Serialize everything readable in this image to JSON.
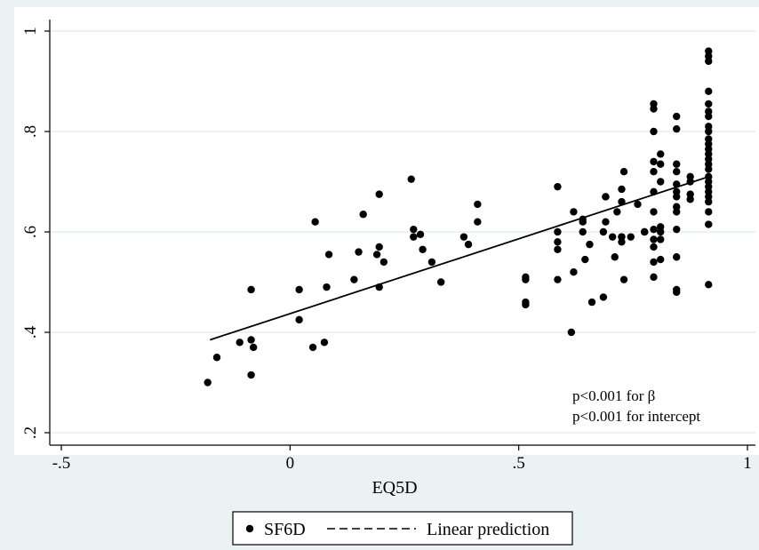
{
  "chart_data": {
    "type": "scatter",
    "xlabel": "EQ5D",
    "ylabel": "",
    "xlim": [
      -0.5,
      1.0
    ],
    "ylim": [
      0.2,
      1.0
    ],
    "x_ticks": [
      -0.5,
      0,
      0.5,
      1
    ],
    "x_tick_labels": [
      "-.5",
      "0",
      ".5",
      "1"
    ],
    "y_ticks": [
      0.2,
      0.4,
      0.6,
      0.8,
      1.0
    ],
    "y_tick_labels": [
      ".2",
      ".4",
      ".6",
      ".8",
      "1"
    ],
    "grid": "horizontal",
    "annotations": [
      "p<0.001 for β",
      "p<0.001 for intercept"
    ],
    "legend": {
      "position": "bottom",
      "entries": [
        {
          "label": "SF6D",
          "marker": "dot"
        },
        {
          "label": "Linear prediction",
          "marker": "dashed-line"
        }
      ]
    },
    "series": [
      {
        "name": "SF6D",
        "kind": "scatter",
        "points": [
          [
            -0.18,
            0.3
          ],
          [
            -0.16,
            0.35
          ],
          [
            -0.11,
            0.38
          ],
          [
            -0.085,
            0.385
          ],
          [
            -0.085,
            0.315
          ],
          [
            -0.085,
            0.485
          ],
          [
            -0.08,
            0.37
          ],
          [
            0.02,
            0.485
          ],
          [
            0.02,
            0.425
          ],
          [
            0.05,
            0.37
          ],
          [
            0.055,
            0.62
          ],
          [
            0.075,
            0.38
          ],
          [
            0.08,
            0.49
          ],
          [
            0.085,
            0.555
          ],
          [
            0.14,
            0.505
          ],
          [
            0.15,
            0.56
          ],
          [
            0.16,
            0.635
          ],
          [
            0.19,
            0.555
          ],
          [
            0.195,
            0.57
          ],
          [
            0.195,
            0.49
          ],
          [
            0.195,
            0.675
          ],
          [
            0.205,
            0.54
          ],
          [
            0.265,
            0.705
          ],
          [
            0.27,
            0.605
          ],
          [
            0.27,
            0.59
          ],
          [
            0.285,
            0.595
          ],
          [
            0.29,
            0.565
          ],
          [
            0.31,
            0.54
          ],
          [
            0.33,
            0.5
          ],
          [
            0.38,
            0.59
          ],
          [
            0.39,
            0.575
          ],
          [
            0.41,
            0.62
          ],
          [
            0.41,
            0.655
          ],
          [
            0.515,
            0.505
          ],
          [
            0.515,
            0.51
          ],
          [
            0.515,
            0.455
          ],
          [
            0.515,
            0.46
          ],
          [
            0.585,
            0.69
          ],
          [
            0.585,
            0.6
          ],
          [
            0.585,
            0.58
          ],
          [
            0.585,
            0.565
          ],
          [
            0.585,
            0.505
          ],
          [
            0.615,
            0.4
          ],
          [
            0.62,
            0.64
          ],
          [
            0.62,
            0.52
          ],
          [
            0.64,
            0.625
          ],
          [
            0.64,
            0.62
          ],
          [
            0.64,
            0.6
          ],
          [
            0.645,
            0.545
          ],
          [
            0.655,
            0.575
          ],
          [
            0.66,
            0.46
          ],
          [
            0.685,
            0.47
          ],
          [
            0.685,
            0.6
          ],
          [
            0.69,
            0.62
          ],
          [
            0.69,
            0.67
          ],
          [
            0.69,
            0.67
          ],
          [
            0.705,
            0.59
          ],
          [
            0.71,
            0.55
          ],
          [
            0.715,
            0.64
          ],
          [
            0.725,
            0.685
          ],
          [
            0.725,
            0.66
          ],
          [
            0.725,
            0.59
          ],
          [
            0.725,
            0.59
          ],
          [
            0.725,
            0.58
          ],
          [
            0.73,
            0.505
          ],
          [
            0.73,
            0.72
          ],
          [
            0.745,
            0.59
          ],
          [
            0.76,
            0.655
          ],
          [
            0.775,
            0.6
          ],
          [
            0.775,
            0.6
          ],
          [
            0.795,
            0.855
          ],
          [
            0.795,
            0.845
          ],
          [
            0.795,
            0.8
          ],
          [
            0.795,
            0.74
          ],
          [
            0.795,
            0.72
          ],
          [
            0.795,
            0.68
          ],
          [
            0.795,
            0.64
          ],
          [
            0.795,
            0.605
          ],
          [
            0.795,
            0.585
          ],
          [
            0.795,
            0.57
          ],
          [
            0.795,
            0.54
          ],
          [
            0.795,
            0.51
          ],
          [
            0.81,
            0.755
          ],
          [
            0.81,
            0.735
          ],
          [
            0.81,
            0.7
          ],
          [
            0.81,
            0.61
          ],
          [
            0.81,
            0.6
          ],
          [
            0.81,
            0.585
          ],
          [
            0.81,
            0.545
          ],
          [
            0.845,
            0.83
          ],
          [
            0.845,
            0.805
          ],
          [
            0.845,
            0.735
          ],
          [
            0.845,
            0.72
          ],
          [
            0.845,
            0.695
          ],
          [
            0.845,
            0.68
          ],
          [
            0.845,
            0.67
          ],
          [
            0.845,
            0.65
          ],
          [
            0.845,
            0.64
          ],
          [
            0.845,
            0.605
          ],
          [
            0.845,
            0.55
          ],
          [
            0.845,
            0.485
          ],
          [
            0.845,
            0.48
          ],
          [
            0.875,
            0.71
          ],
          [
            0.875,
            0.7
          ],
          [
            0.875,
            0.675
          ],
          [
            0.875,
            0.665
          ],
          [
            0.915,
            0.96
          ],
          [
            0.915,
            0.95
          ],
          [
            0.915,
            0.94
          ],
          [
            0.915,
            0.88
          ],
          [
            0.915,
            0.855
          ],
          [
            0.915,
            0.84
          ],
          [
            0.915,
            0.83
          ],
          [
            0.915,
            0.81
          ],
          [
            0.915,
            0.8
          ],
          [
            0.915,
            0.785
          ],
          [
            0.915,
            0.775
          ],
          [
            0.915,
            0.765
          ],
          [
            0.915,
            0.755
          ],
          [
            0.915,
            0.745
          ],
          [
            0.915,
            0.735
          ],
          [
            0.915,
            0.725
          ],
          [
            0.915,
            0.71
          ],
          [
            0.915,
            0.7
          ],
          [
            0.915,
            0.69
          ],
          [
            0.915,
            0.68
          ],
          [
            0.915,
            0.67
          ],
          [
            0.915,
            0.66
          ],
          [
            0.915,
            0.64
          ],
          [
            0.915,
            0.615
          ],
          [
            0.915,
            0.495
          ]
        ]
      },
      {
        "name": "Linear prediction",
        "kind": "line",
        "points": [
          [
            -0.175,
            0.385
          ],
          [
            0.915,
            0.71
          ]
        ]
      }
    ]
  }
}
